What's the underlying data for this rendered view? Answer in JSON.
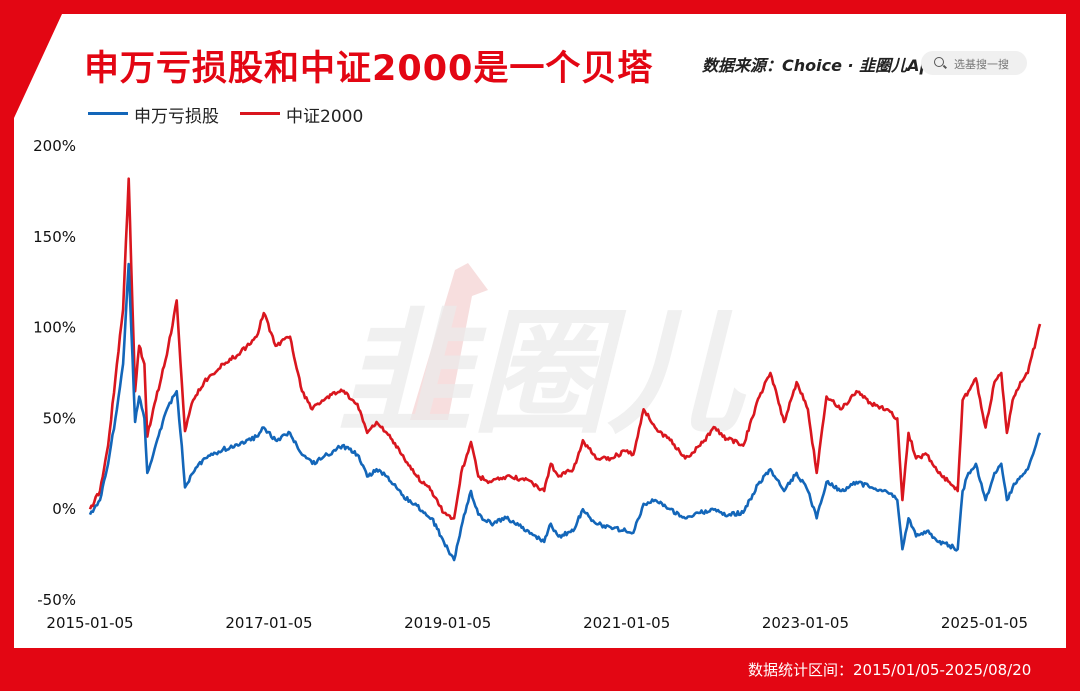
{
  "title": "申万亏损股和中证2000是一个贝塔",
  "source": "数据来源：Choice · 韭圈儿App",
  "search": {
    "placeholder": "选基搜一搜"
  },
  "watermark": "韭圈儿",
  "footer": "数据统计区间：2015/01/05-2025/08/20",
  "colors": {
    "background": "#e30613",
    "series_a": "#1366b9",
    "series_b": "#d9161e"
  },
  "chart_data": {
    "type": "line",
    "ylim": [
      -50,
      200
    ],
    "yticks": [
      200,
      150,
      100,
      50,
      0,
      -50
    ],
    "ytick_labels": [
      "200%",
      "150%",
      "100%",
      "50%",
      "0%",
      "-50%"
    ],
    "xlim": [
      "2015-01-05",
      "2025-08-20"
    ],
    "xtick_labels": [
      "2015-01-05",
      "2017-01-05",
      "2019-01-05",
      "2021-01-05",
      "2023-01-05",
      "2025-01-05"
    ],
    "series": [
      {
        "name": "申万亏损股",
        "points": [
          [
            "2015-01-05",
            -3
          ],
          [
            "2015-02-15",
            5
          ],
          [
            "2015-03-20",
            25
          ],
          [
            "2015-04-25",
            55
          ],
          [
            "2015-05-20",
            80
          ],
          [
            "2015-06-12",
            135
          ],
          [
            "2015-07-08",
            48
          ],
          [
            "2015-07-25",
            62
          ],
          [
            "2015-08-15",
            50
          ],
          [
            "2015-08-27",
            20
          ],
          [
            "2015-09-20",
            30
          ],
          [
            "2015-11-15",
            55
          ],
          [
            "2015-12-25",
            65
          ],
          [
            "2016-01-15",
            35
          ],
          [
            "2016-01-28",
            12
          ],
          [
            "2016-03-01",
            20
          ],
          [
            "2016-04-15",
            28
          ],
          [
            "2016-07-01",
            33
          ],
          [
            "2016-09-01",
            35
          ],
          [
            "2016-11-15",
            40
          ],
          [
            "2016-12-15",
            45
          ],
          [
            "2017-02-01",
            38
          ],
          [
            "2017-04-01",
            42
          ],
          [
            "2017-05-20",
            30
          ],
          [
            "2017-07-01",
            25
          ],
          [
            "2017-09-01",
            30
          ],
          [
            "2017-11-01",
            35
          ],
          [
            "2018-01-01",
            30
          ],
          [
            "2018-02-10",
            18
          ],
          [
            "2018-03-20",
            22
          ],
          [
            "2018-05-01",
            18
          ],
          [
            "2018-07-01",
            8
          ],
          [
            "2018-09-01",
            2
          ],
          [
            "2018-11-01",
            -5
          ],
          [
            "2018-12-20",
            -18
          ],
          [
            "2019-01-31",
            -28
          ],
          [
            "2019-03-01",
            -10
          ],
          [
            "2019-04-10",
            10
          ],
          [
            "2019-05-10",
            -3
          ],
          [
            "2019-07-01",
            -8
          ],
          [
            "2019-09-01",
            -5
          ],
          [
            "2019-12-01",
            -12
          ],
          [
            "2020-02-03",
            -18
          ],
          [
            "2020-03-01",
            -8
          ],
          [
            "2020-04-01",
            -15
          ],
          [
            "2020-06-01",
            -12
          ],
          [
            "2020-07-10",
            0
          ],
          [
            "2020-09-01",
            -8
          ],
          [
            "2020-11-01",
            -10
          ],
          [
            "2021-01-01",
            -12
          ],
          [
            "2021-02-01",
            -13
          ],
          [
            "2021-03-15",
            3
          ],
          [
            "2021-05-01",
            5
          ],
          [
            "2021-07-01",
            0
          ],
          [
            "2021-09-01",
            -5
          ],
          [
            "2021-11-01",
            -2
          ],
          [
            "2022-01-01",
            0
          ],
          [
            "2022-02-01",
            -3
          ],
          [
            "2022-04-26",
            -2
          ],
          [
            "2022-07-01",
            15
          ],
          [
            "2022-08-15",
            22
          ],
          [
            "2022-10-10",
            10
          ],
          [
            "2022-11-30",
            20
          ],
          [
            "2023-01-15",
            10
          ],
          [
            "2023-02-20",
            -5
          ],
          [
            "2023-04-01",
            15
          ],
          [
            "2023-06-01",
            10
          ],
          [
            "2023-08-01",
            15
          ],
          [
            "2023-10-01",
            12
          ],
          [
            "2023-12-01",
            10
          ],
          [
            "2024-01-15",
            5
          ],
          [
            "2024-02-05",
            -22
          ],
          [
            "2024-03-01",
            -5
          ],
          [
            "2024-04-01",
            -15
          ],
          [
            "2024-05-15",
            -12
          ],
          [
            "2024-07-01",
            -18
          ],
          [
            "2024-08-15",
            -20
          ],
          [
            "2024-09-18",
            -22
          ],
          [
            "2024-10-08",
            10
          ],
          [
            "2024-11-01",
            20
          ],
          [
            "2024-12-01",
            25
          ],
          [
            "2025-01-10",
            5
          ],
          [
            "2025-02-15",
            20
          ],
          [
            "2025-03-15",
            25
          ],
          [
            "2025-04-07",
            5
          ],
          [
            "2025-04-30",
            12
          ],
          [
            "2025-06-01",
            18
          ],
          [
            "2025-07-01",
            22
          ],
          [
            "2025-08-20",
            42
          ]
        ]
      },
      {
        "name": "中证2000",
        "points": [
          [
            "2015-01-05",
            0
          ],
          [
            "2015-02-15",
            10
          ],
          [
            "2015-03-20",
            35
          ],
          [
            "2015-04-25",
            80
          ],
          [
            "2015-05-20",
            110
          ],
          [
            "2015-06-12",
            182
          ],
          [
            "2015-07-08",
            65
          ],
          [
            "2015-07-25",
            90
          ],
          [
            "2015-08-15",
            80
          ],
          [
            "2015-08-27",
            40
          ],
          [
            "2015-09-20",
            55
          ],
          [
            "2015-11-15",
            85
          ],
          [
            "2015-12-25",
            115
          ],
          [
            "2016-01-15",
            70
          ],
          [
            "2016-01-28",
            43
          ],
          [
            "2016-03-01",
            60
          ],
          [
            "2016-04-15",
            70
          ],
          [
            "2016-07-01",
            80
          ],
          [
            "2016-09-01",
            85
          ],
          [
            "2016-11-15",
            95
          ],
          [
            "2016-12-15",
            108
          ],
          [
            "2017-02-01",
            90
          ],
          [
            "2017-04-01",
            95
          ],
          [
            "2017-05-20",
            65
          ],
          [
            "2017-07-01",
            55
          ],
          [
            "2017-09-01",
            62
          ],
          [
            "2017-11-01",
            65
          ],
          [
            "2018-01-01",
            58
          ],
          [
            "2018-02-10",
            42
          ],
          [
            "2018-03-20",
            48
          ],
          [
            "2018-05-01",
            42
          ],
          [
            "2018-07-01",
            30
          ],
          [
            "2018-09-01",
            18
          ],
          [
            "2018-11-01",
            10
          ],
          [
            "2018-12-20",
            -2
          ],
          [
            "2019-01-31",
            -5
          ],
          [
            "2019-03-01",
            20
          ],
          [
            "2019-04-10",
            37
          ],
          [
            "2019-05-10",
            18
          ],
          [
            "2019-07-01",
            15
          ],
          [
            "2019-09-01",
            18
          ],
          [
            "2019-12-01",
            16
          ],
          [
            "2020-02-03",
            10
          ],
          [
            "2020-03-01",
            25
          ],
          [
            "2020-04-01",
            18
          ],
          [
            "2020-06-01",
            22
          ],
          [
            "2020-07-10",
            38
          ],
          [
            "2020-09-01",
            28
          ],
          [
            "2020-11-01",
            28
          ],
          [
            "2021-01-01",
            32
          ],
          [
            "2021-02-01",
            30
          ],
          [
            "2021-03-15",
            55
          ],
          [
            "2021-05-01",
            45
          ],
          [
            "2021-07-01",
            38
          ],
          [
            "2021-09-01",
            28
          ],
          [
            "2021-11-01",
            35
          ],
          [
            "2022-01-01",
            45
          ],
          [
            "2022-02-01",
            40
          ],
          [
            "2022-04-26",
            35
          ],
          [
            "2022-07-01",
            62
          ],
          [
            "2022-08-15",
            75
          ],
          [
            "2022-10-10",
            48
          ],
          [
            "2022-11-30",
            70
          ],
          [
            "2023-01-15",
            55
          ],
          [
            "2023-02-20",
            20
          ],
          [
            "2023-04-01",
            62
          ],
          [
            "2023-06-01",
            55
          ],
          [
            "2023-08-01",
            65
          ],
          [
            "2023-10-01",
            58
          ],
          [
            "2023-12-01",
            55
          ],
          [
            "2024-01-15",
            50
          ],
          [
            "2024-02-05",
            5
          ],
          [
            "2024-03-01",
            42
          ],
          [
            "2024-04-01",
            28
          ],
          [
            "2024-05-15",
            30
          ],
          [
            "2024-07-01",
            20
          ],
          [
            "2024-08-15",
            15
          ],
          [
            "2024-09-18",
            10
          ],
          [
            "2024-10-08",
            60
          ],
          [
            "2024-11-01",
            65
          ],
          [
            "2024-12-01",
            72
          ],
          [
            "2025-01-10",
            45
          ],
          [
            "2025-02-15",
            70
          ],
          [
            "2025-03-15",
            75
          ],
          [
            "2025-04-07",
            42
          ],
          [
            "2025-04-30",
            60
          ],
          [
            "2025-06-01",
            70
          ],
          [
            "2025-07-01",
            75
          ],
          [
            "2025-08-20",
            102
          ]
        ]
      }
    ]
  }
}
